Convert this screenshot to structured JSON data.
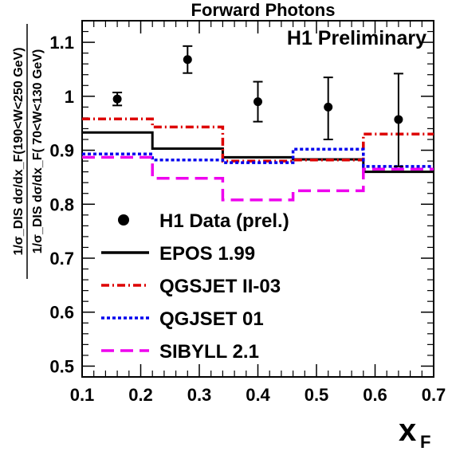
{
  "chart_data": {
    "type": "line",
    "title": "Forward Photons",
    "annotation": "H1 Preliminary",
    "xlabel": "x",
    "xlabel_sub": "F",
    "ylabel_numerator": "1/σ_DIS dσ/dx_F(190<W<250 GeV)",
    "ylabel_denominator": "1/σ_DIS dσ/dx_F( 70<W<130 GeV)",
    "xlim": [
      0.1,
      0.7
    ],
    "ylim": [
      0.48,
      1.14
    ],
    "x_ticks": [
      0.1,
      0.2,
      0.3,
      0.4,
      0.5,
      0.6,
      0.7
    ],
    "x_tick_labels": [
      "0.1",
      "0.2",
      "0.3",
      "0.4",
      "0.5",
      "0.6",
      "0.7"
    ],
    "y_ticks": [
      0.5,
      0.6,
      0.7,
      0.8,
      0.9,
      1.0,
      1.1
    ],
    "y_tick_labels": [
      "0.5",
      "0.6",
      "0.7",
      "0.8",
      "0.9",
      "1",
      "1.1"
    ],
    "grid": false,
    "legend_position": "bottom-left",
    "bin_edges": [
      0.1,
      0.22,
      0.34,
      0.46,
      0.58,
      0.7
    ],
    "data_points": {
      "name": "H1 Data (prel.)",
      "color": "#000000",
      "x": [
        0.16,
        0.28,
        0.4,
        0.52,
        0.64
      ],
      "y": [
        0.995,
        1.068,
        0.99,
        0.98,
        0.957
      ],
      "err_low": [
        0.012,
        0.025,
        0.037,
        0.06,
        0.087
      ],
      "err_high": [
        0.012,
        0.025,
        0.037,
        0.055,
        0.085
      ]
    },
    "series": [
      {
        "name": "EPOS 1.99",
        "color": "#000000",
        "style": "solid",
        "values": [
          0.933,
          0.903,
          0.887,
          0.883,
          0.86
        ]
      },
      {
        "name": "QGSJET II-03",
        "color": "#dd0000",
        "style": "dashdot",
        "values": [
          0.958,
          0.943,
          0.88,
          0.882,
          0.93
        ]
      },
      {
        "name": "QGJSET 01",
        "color": "#0000ee",
        "style": "dotted",
        "values": [
          0.893,
          0.882,
          0.877,
          0.902,
          0.87
        ]
      },
      {
        "name": "SIBYLL 2.1",
        "color": "#ee00ee",
        "style": "dashed",
        "values": [
          0.887,
          0.848,
          0.808,
          0.825,
          0.865
        ]
      }
    ]
  }
}
